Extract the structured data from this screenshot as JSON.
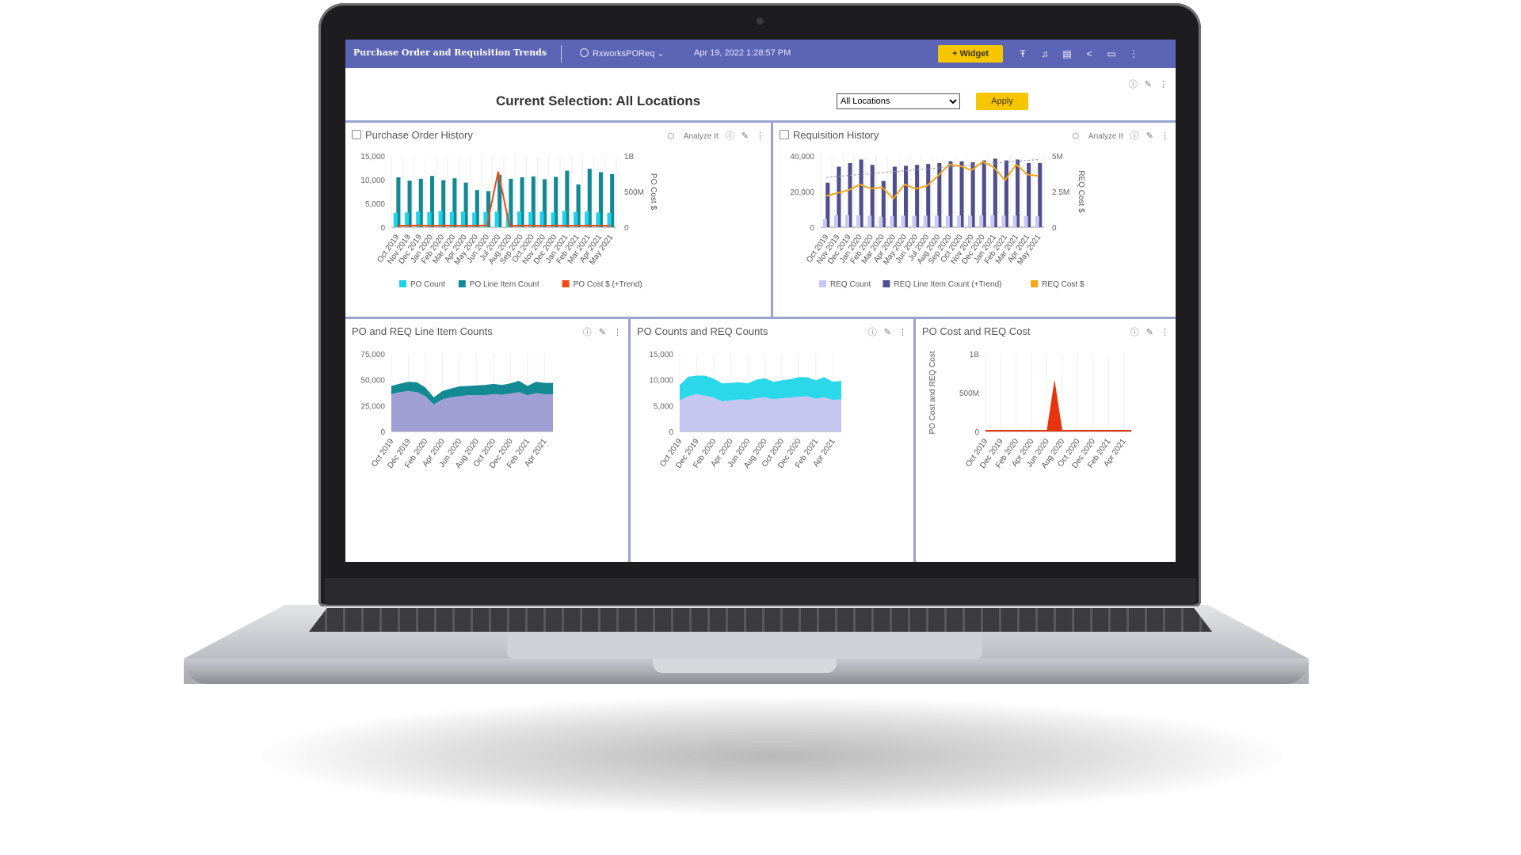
{
  "colors": {
    "header_bg": "#5c64b6",
    "accent": "#f6c600",
    "panel_border": "#9aa2cf",
    "po_count": "#1ed2ea",
    "po_line": "#138a93",
    "po_cost": "#f04a16",
    "req_count": "#c8c8f4",
    "req_line": "#4f4f8e",
    "req_cost": "#f4a616",
    "area_req_line": "#9f9fd4",
    "area_po_line": "#138a93",
    "area_req_count": "#c6c6f0",
    "area_po_count": "#2bd8ea",
    "area_cost": "#e8340e"
  },
  "header": {
    "title": "Purchase Order and Requisition Trends",
    "datasource": "RxworksPOReq",
    "datasource_icon": "database-icon",
    "timestamp": "Apr 19, 2022 1:28:57 PM",
    "widget_button": "+ Widget",
    "icons": [
      "text-icon",
      "bell-icon",
      "keyboard-icon",
      "share-icon",
      "monitor-icon",
      "more-vertical-icon"
    ]
  },
  "selection": {
    "label": "Current Selection:  All Locations",
    "dropdown_value": "All Locations",
    "apply_button": "Apply"
  },
  "panels": {
    "po_history": {
      "title": "Purchase Order History",
      "analyze": "Analyze It"
    },
    "req_history": {
      "title": "Requisition History",
      "analyze": "Analyze It"
    },
    "line_counts": {
      "title": "PO and REQ Line Item Counts"
    },
    "counts": {
      "title": "PO Counts and REQ Counts"
    },
    "cost": {
      "title": "PO Cost and REQ Cost"
    }
  },
  "chart_data": [
    {
      "type": "bar",
      "title": "Purchase Order History",
      "categories": [
        "Oct 2019",
        "Nov 2019",
        "Dec 2019",
        "Jan 2020",
        "Feb 2020",
        "Mar 2020",
        "Apr 2020",
        "May 2020",
        "Jun 2020",
        "Jul 2020",
        "Aug 2020",
        "Sep 2020",
        "Oct 2020",
        "Nov 2020",
        "Dec 2020",
        "Jan 2021",
        "Feb 2021",
        "Mar 2021",
        "Apr 2021",
        "May 2021"
      ],
      "series": [
        {
          "name": "PO Count",
          "axis": "left",
          "values": [
            3000,
            3100,
            3300,
            3200,
            3400,
            3200,
            3300,
            3100,
            3200,
            3300,
            3100,
            3300,
            3200,
            3300,
            3100,
            3400,
            3200,
            3300,
            3100,
            3000
          ]
        },
        {
          "name": "PO Line Item Count",
          "axis": "left",
          "values": [
            10500,
            9800,
            10200,
            10800,
            9900,
            10300,
            9400,
            7800,
            7600,
            11000,
            10200,
            10500,
            10700,
            10100,
            10600,
            11900,
            9000,
            12300,
            11600,
            11200
          ]
        },
        {
          "name": "PO Cost $ (+Trend)",
          "axis": "right",
          "type": "line",
          "values": [
            20,
            22,
            25,
            20,
            24,
            22,
            21,
            22,
            25,
            780,
            20,
            22,
            24,
            20,
            23,
            22,
            21,
            24,
            22,
            20
          ]
        }
      ],
      "yticks_left": [
        "15,000",
        "10,000",
        "5,000",
        "0"
      ],
      "yticks_right": [
        "1B",
        "500M",
        "0"
      ],
      "ylim_left": [
        0,
        15000
      ],
      "ylim_right": [
        0,
        1000
      ],
      "y2label": "PO Cost $",
      "legend_position": "bottom"
    },
    {
      "type": "bar",
      "title": "Requisition History",
      "categories": [
        "Oct 2019",
        "Nov 2019",
        "Dec 2019",
        "Jan 2020",
        "Feb 2020",
        "Mar 2020",
        "Apr 2020",
        "May 2020",
        "Jun 2020",
        "Jul 2020",
        "Aug 2020",
        "Sep 2020",
        "Oct 2020",
        "Nov 2020",
        "Dec 2020",
        "Jan 2021",
        "Feb 2021",
        "Mar 2021",
        "Apr 2021",
        "May 2021"
      ],
      "series": [
        {
          "name": "REQ Count",
          "axis": "left",
          "values": [
            4500,
            6800,
            6900,
            6700,
            6500,
            5800,
            6200,
            6500,
            6400,
            6500,
            6600,
            6400,
            6600,
            6500,
            6700,
            6800,
            6500,
            6600,
            6300,
            6200
          ]
        },
        {
          "name": "REQ Line Item Count (+Trend)",
          "axis": "left",
          "values": [
            25000,
            34000,
            36000,
            38000,
            35000,
            26000,
            34000,
            34500,
            35000,
            35500,
            36000,
            37000,
            37000,
            36500,
            37500,
            38500,
            37500,
            38000,
            36000,
            36000
          ]
        },
        {
          "name": "REQ Cost $",
          "axis": "right",
          "type": "line",
          "values": [
            2.2,
            2.4,
            2.6,
            3.0,
            2.7,
            2.8,
            2.0,
            3.0,
            2.7,
            2.9,
            3.6,
            4.4,
            4.3,
            4.0,
            4.6,
            4.2,
            3.3,
            4.4,
            3.7,
            3.6
          ]
        }
      ],
      "yticks_left": [
        "40,000",
        "20,000",
        "0"
      ],
      "yticks_right": [
        "5M",
        "2.5M",
        "0"
      ],
      "ylim_left": [
        0,
        40000
      ],
      "ylim_right": [
        0,
        5
      ],
      "y2label": "REQ Cost $",
      "legend_position": "bottom"
    },
    {
      "type": "area",
      "title": "PO and REQ Line Item Counts",
      "x": [
        "Oct 2019",
        "Nov 2019",
        "Dec 2019",
        "Jan 2020",
        "Feb 2020",
        "Mar 2020",
        "Apr 2020",
        "May 2020",
        "Jun 2020",
        "Jul 2020",
        "Aug 2020",
        "Sep 2020",
        "Oct 2020",
        "Nov 2020",
        "Dec 2020",
        "Jan 2021",
        "Feb 2021",
        "Mar 2021",
        "Apr 2021",
        "May 2021"
      ],
      "xticks": [
        "Oct 2019",
        "Dec 2019",
        "Feb 2020",
        "Apr 2020",
        "Jun 2020",
        "Aug 2020",
        "Oct 2020",
        "Dec 2020",
        "Feb 2021",
        "Apr 2021"
      ],
      "series": [
        {
          "name": "REQ Line Item Count",
          "values": [
            36000,
            38000,
            39000,
            38000,
            34000,
            26000,
            31000,
            33000,
            34000,
            35000,
            35000,
            35000,
            36000,
            35500,
            36500,
            38000,
            35000,
            37000,
            36000,
            36000
          ]
        },
        {
          "name": "PO Line Item Count",
          "values": [
            8000,
            8200,
            9000,
            9500,
            8500,
            7000,
            8000,
            8500,
            9500,
            9000,
            9500,
            10000,
            10000,
            9500,
            10000,
            11000,
            9000,
            11000,
            11000,
            11000
          ]
        }
      ],
      "stacked": true,
      "yticks": [
        "75,000",
        "50,000",
        "25,000",
        "0"
      ],
      "ylim": [
        0,
        75000
      ]
    },
    {
      "type": "area",
      "title": "PO Counts and REQ Counts",
      "x": [
        "Oct 2019",
        "Nov 2019",
        "Dec 2019",
        "Jan 2020",
        "Feb 2020",
        "Mar 2020",
        "Apr 2020",
        "May 2020",
        "Jun 2020",
        "Jul 2020",
        "Aug 2020",
        "Sep 2020",
        "Oct 2020",
        "Nov 2020",
        "Dec 2020",
        "Jan 2021",
        "Feb 2021",
        "Mar 2021",
        "Apr 2021",
        "May 2021"
      ],
      "xticks": [
        "Oct 2019",
        "Dec 2019",
        "Feb 2020",
        "Apr 2020",
        "Jun 2020",
        "Aug 2020",
        "Oct 2020",
        "Dec 2020",
        "Feb 2021",
        "Apr 2021"
      ],
      "series": [
        {
          "name": "REQ Count",
          "values": [
            6000,
            6800,
            7200,
            6900,
            6500,
            5800,
            6000,
            6200,
            6100,
            6400,
            6600,
            6200,
            6400,
            6500,
            6700,
            6800,
            6300,
            6600,
            6100,
            6200
          ]
        },
        {
          "name": "PO Count",
          "values": [
            3000,
            3800,
            3600,
            3900,
            3700,
            3500,
            3400,
            3300,
            3200,
            3600,
            3700,
            3400,
            3500,
            3600,
            3800,
            3700,
            3600,
            3900,
            3500,
            3600
          ]
        }
      ],
      "stacked": true,
      "yticks": [
        "15,000",
        "10,000",
        "5,000",
        "0"
      ],
      "ylim": [
        0,
        15000
      ]
    },
    {
      "type": "area",
      "title": "PO Cost and REQ Cost",
      "x": [
        "Oct 2019",
        "Nov 2019",
        "Dec 2019",
        "Jan 2020",
        "Feb 2020",
        "Mar 2020",
        "Apr 2020",
        "May 2020",
        "Jun 2020",
        "Jul 2020",
        "Aug 2020",
        "Sep 2020",
        "Oct 2020",
        "Nov 2020",
        "Dec 2020",
        "Jan 2021",
        "Feb 2021",
        "Mar 2021",
        "Apr 2021",
        "May 2021"
      ],
      "xticks": [
        "Oct 2019",
        "Dec 2019",
        "Feb 2020",
        "Apr 2020",
        "Jun 2020",
        "Aug 2020",
        "Oct 2020",
        "Dec 2020",
        "Feb 2021",
        "Apr 2021"
      ],
      "series": [
        {
          "name": "PO Cost",
          "values": [
            0.02,
            0.02,
            0.02,
            0.02,
            0.02,
            0.02,
            0.02,
            0.02,
            0.02,
            0.67,
            0.02,
            0.02,
            0.02,
            0.02,
            0.02,
            0.02,
            0.02,
            0.02,
            0.02,
            0.02
          ]
        }
      ],
      "yticks": [
        "1B",
        "500M",
        "0"
      ],
      "ylim": [
        0,
        1
      ],
      "ylabel": "PO Cost and REQ Cost"
    }
  ]
}
